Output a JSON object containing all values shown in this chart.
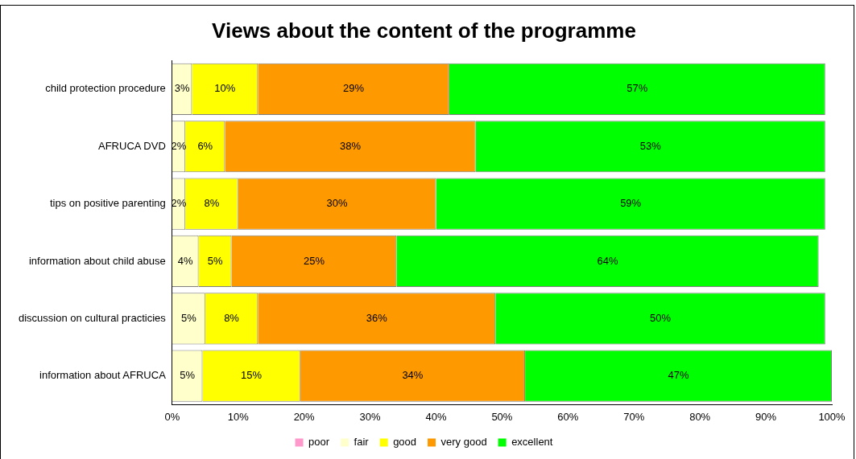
{
  "chart_data": {
    "type": "bar",
    "orientation": "horizontal",
    "stacked": true,
    "title": "Views about the content of the programme",
    "categories": [
      "child protection procedure",
      "AFRUCA DVD",
      "tips on positive parenting",
      "information about child abuse",
      "discussion on cultural practicies",
      "information about AFRUCA"
    ],
    "series": [
      {
        "name": "poor",
        "color": "#ff99cc",
        "values": [
          0,
          0,
          0,
          0,
          0,
          0
        ],
        "value_labels": [
          null,
          null,
          null,
          null,
          null,
          null
        ]
      },
      {
        "name": "fair",
        "color": "#ffffcc",
        "values": [
          3,
          2,
          2,
          4,
          5,
          4.6
        ],
        "value_labels": [
          "3%",
          "2%",
          "2%",
          "4%",
          "5%",
          "5%"
        ]
      },
      {
        "name": "good",
        "color": "#ffff00",
        "values": [
          10,
          6,
          8,
          5,
          8,
          14.8
        ],
        "value_labels": [
          "10%",
          "6%",
          "8%",
          "5%",
          "8%",
          "15%"
        ]
      },
      {
        "name": "very good",
        "color": "#ff9900",
        "values": [
          29,
          38,
          30,
          25,
          36,
          34.1
        ],
        "value_labels": [
          "29%",
          "38%",
          "30%",
          "25%",
          "36%",
          "34%"
        ]
      },
      {
        "name": "excellent",
        "color": "#00ff00",
        "values": [
          57,
          53,
          59,
          64,
          50,
          46.5
        ],
        "value_labels": [
          "57%",
          "53%",
          "59%",
          "64%",
          "50%",
          "47%"
        ]
      }
    ],
    "xlim": [
      0,
      100
    ],
    "xticks": [
      {
        "value": 0,
        "label": "0%"
      },
      {
        "value": 10,
        "label": "10%"
      },
      {
        "value": 20,
        "label": "20%"
      },
      {
        "value": 30,
        "label": "30%"
      },
      {
        "value": 40,
        "label": "40%"
      },
      {
        "value": 50,
        "label": "50%"
      },
      {
        "value": 60,
        "label": "60%"
      },
      {
        "value": 70,
        "label": "70%"
      },
      {
        "value": 80,
        "label": "80%"
      },
      {
        "value": 90,
        "label": "90%"
      },
      {
        "value": 100,
        "label": "100%"
      }
    ],
    "grid": false,
    "legend": "bottom"
  }
}
